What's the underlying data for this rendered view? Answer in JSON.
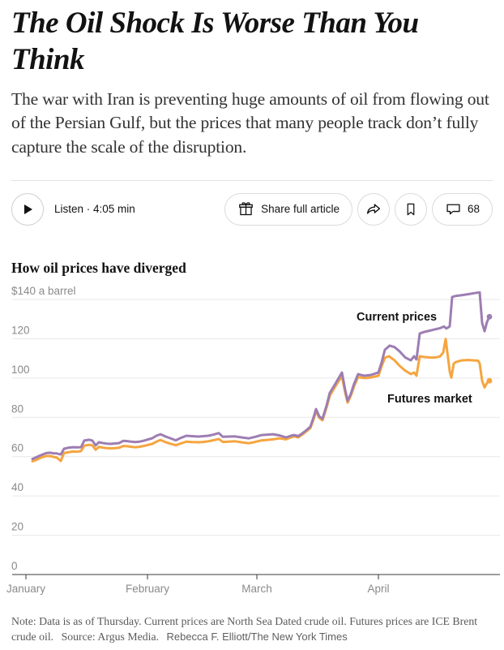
{
  "article": {
    "headline": "The Oil Shock Is Worse Than You Think",
    "subheadline": "The war with Iran is preventing huge amounts of oil from flowing out of the Persian Gulf, but the prices that many people track don’t fully capture the scale of the disruption.",
    "listen_label": "Listen · 4:05 min",
    "share_button_label": "Share full article",
    "comment_count": "68"
  },
  "chart_data": {
    "type": "line",
    "title": "How oil prices have diverged",
    "unit_label": "$140 a barrel",
    "ylabel": "dollars per barrel",
    "ylim": [
      0,
      140
    ],
    "y_ticks": [
      0,
      20,
      40,
      60,
      80,
      100,
      120,
      140
    ],
    "x_ticks": [
      "January",
      "February",
      "March",
      "April"
    ],
    "grid": true,
    "legend_position": "inline-annotations",
    "series": [
      {
        "name": "Current prices",
        "color": "#9d7db2",
        "points": [
          [
            40,
            58.8
          ],
          [
            44,
            59.5
          ],
          [
            48,
            60.3
          ],
          [
            52,
            61.0
          ],
          [
            57,
            61.8
          ],
          [
            62,
            62.0
          ],
          [
            66,
            61.7
          ],
          [
            70,
            61.6
          ],
          [
            75,
            61.1
          ],
          [
            79,
            64.0
          ],
          [
            84,
            64.5
          ],
          [
            90,
            64.8
          ],
          [
            95,
            64.7
          ],
          [
            100,
            64.8
          ],
          [
            104,
            68.2
          ],
          [
            110,
            68.6
          ],
          [
            114,
            68.2
          ],
          [
            118,
            65.7
          ],
          [
            122,
            67.3
          ],
          [
            127,
            66.9
          ],
          [
            132,
            66.6
          ],
          [
            137,
            66.5
          ],
          [
            142,
            66.7
          ],
          [
            147,
            66.9
          ],
          [
            152,
            68.0
          ],
          [
            157,
            67.9
          ],
          [
            162,
            67.6
          ],
          [
            167,
            67.4
          ],
          [
            172,
            67.6
          ],
          [
            178,
            68.2
          ],
          [
            183,
            68.8
          ],
          [
            188,
            69.4
          ],
          [
            193,
            70.6
          ],
          [
            198,
            71.4
          ],
          [
            204,
            70.3
          ],
          [
            210,
            69.4
          ],
          [
            217,
            68.3
          ],
          [
            223,
            69.5
          ],
          [
            230,
            70.6
          ],
          [
            237,
            70.4
          ],
          [
            245,
            70.2
          ],
          [
            251,
            70.4
          ],
          [
            257,
            70.6
          ],
          [
            264,
            71.3
          ],
          [
            270,
            72.0
          ],
          [
            275,
            70.1
          ],
          [
            282,
            70.2
          ],
          [
            290,
            70.3
          ],
          [
            298,
            69.8
          ],
          [
            307,
            69.3
          ],
          [
            315,
            70.1
          ],
          [
            323,
            71.0
          ],
          [
            330,
            71.2
          ],
          [
            337,
            71.4
          ],
          [
            345,
            70.8
          ],
          [
            353,
            69.8
          ],
          [
            359,
            70.6
          ],
          [
            363,
            71.0
          ],
          [
            368,
            70.4
          ],
          [
            373,
            71.8
          ],
          [
            377,
            73.1
          ],
          [
            383,
            75.2
          ],
          [
            387,
            80.0
          ],
          [
            390,
            84.2
          ],
          [
            394,
            80.5
          ],
          [
            398,
            79.3
          ],
          [
            403,
            86.0
          ],
          [
            407,
            92.5
          ],
          [
            412,
            95.8
          ],
          [
            418,
            100.0
          ],
          [
            422,
            102.8
          ],
          [
            426,
            94.0
          ],
          [
            429,
            88.4
          ],
          [
            433,
            92.0
          ],
          [
            437,
            97.1
          ],
          [
            442,
            102.0
          ],
          [
            446,
            101.5
          ],
          [
            450,
            101.2
          ],
          [
            454,
            101.4
          ],
          [
            458,
            101.6
          ],
          [
            463,
            102.3
          ],
          [
            467,
            102.8
          ],
          [
            471,
            108.0
          ],
          [
            475,
            114.4
          ],
          [
            481,
            116.5
          ],
          [
            487,
            115.7
          ],
          [
            493,
            113.6
          ],
          [
            500,
            110.5
          ],
          [
            507,
            109.0
          ],
          [
            511,
            111.1
          ],
          [
            514,
            109.5
          ],
          [
            518,
            122.7
          ],
          [
            523,
            123.4
          ],
          [
            528,
            123.9
          ],
          [
            533,
            124.4
          ],
          [
            538,
            124.9
          ],
          [
            543,
            125.4
          ],
          [
            548,
            126.2
          ],
          [
            551,
            125.2
          ],
          [
            555,
            126.3
          ],
          [
            558,
            141.3
          ],
          [
            563,
            141.8
          ],
          [
            570,
            142.2
          ],
          [
            578,
            142.7
          ],
          [
            585,
            143.2
          ],
          [
            592,
            143.6
          ],
          [
            595,
            128.0
          ],
          [
            598,
            123.8
          ],
          [
            601,
            128.5
          ],
          [
            604,
            131.2
          ]
        ]
      },
      {
        "name": "Futures market",
        "color": "#f5a53f",
        "points": [
          [
            40,
            57.6
          ],
          [
            44,
            58.2
          ],
          [
            48,
            59.0
          ],
          [
            52,
            59.7
          ],
          [
            57,
            60.3
          ],
          [
            62,
            60.3
          ],
          [
            66,
            59.9
          ],
          [
            70,
            59.5
          ],
          [
            75,
            57.8
          ],
          [
            79,
            61.8
          ],
          [
            84,
            62.2
          ],
          [
            90,
            62.6
          ],
          [
            95,
            62.5
          ],
          [
            100,
            62.8
          ],
          [
            104,
            65.6
          ],
          [
            110,
            66.0
          ],
          [
            114,
            65.7
          ],
          [
            118,
            63.5
          ],
          [
            122,
            65.0
          ],
          [
            127,
            64.6
          ],
          [
            132,
            64.3
          ],
          [
            137,
            64.2
          ],
          [
            142,
            64.3
          ],
          [
            147,
            64.5
          ],
          [
            152,
            65.4
          ],
          [
            157,
            65.3
          ],
          [
            162,
            65.0
          ],
          [
            167,
            64.8
          ],
          [
            172,
            65.0
          ],
          [
            178,
            65.5
          ],
          [
            183,
            66.0
          ],
          [
            188,
            66.5
          ],
          [
            193,
            67.6
          ],
          [
            198,
            68.5
          ],
          [
            204,
            67.4
          ],
          [
            210,
            66.6
          ],
          [
            217,
            65.8
          ],
          [
            223,
            66.7
          ],
          [
            230,
            67.6
          ],
          [
            237,
            67.4
          ],
          [
            245,
            67.3
          ],
          [
            251,
            67.5
          ],
          [
            257,
            67.8
          ],
          [
            264,
            68.4
          ],
          [
            270,
            69.0
          ],
          [
            275,
            67.5
          ],
          [
            282,
            67.6
          ],
          [
            290,
            67.8
          ],
          [
            298,
            67.3
          ],
          [
            307,
            66.8
          ],
          [
            315,
            67.5
          ],
          [
            323,
            68.3
          ],
          [
            330,
            68.5
          ],
          [
            337,
            68.8
          ],
          [
            345,
            69.3
          ],
          [
            353,
            68.8
          ],
          [
            359,
            69.8
          ],
          [
            363,
            70.3
          ],
          [
            368,
            69.8
          ],
          [
            373,
            71.2
          ],
          [
            377,
            72.5
          ],
          [
            383,
            74.5
          ],
          [
            387,
            79.0
          ],
          [
            390,
            83.0
          ],
          [
            394,
            79.8
          ],
          [
            398,
            78.5
          ],
          [
            403,
            85.0
          ],
          [
            407,
            91.0
          ],
          [
            412,
            94.5
          ],
          [
            418,
            98.5
          ],
          [
            422,
            100.8
          ],
          [
            426,
            92.5
          ],
          [
            429,
            87.5
          ],
          [
            433,
            91.0
          ],
          [
            437,
            95.8
          ],
          [
            442,
            100.5
          ],
          [
            446,
            100.2
          ],
          [
            450,
            100.0
          ],
          [
            454,
            100.1
          ],
          [
            458,
            100.3
          ],
          [
            463,
            100.8
          ],
          [
            467,
            101.2
          ],
          [
            471,
            106.0
          ],
          [
            475,
            110.3
          ],
          [
            480,
            111.1
          ],
          [
            487,
            109.0
          ],
          [
            493,
            106.3
          ],
          [
            500,
            103.8
          ],
          [
            507,
            102.0
          ],
          [
            511,
            102.8
          ],
          [
            514,
            101.2
          ],
          [
            518,
            111.1
          ],
          [
            523,
            110.7
          ],
          [
            528,
            110.5
          ],
          [
            533,
            110.4
          ],
          [
            538,
            110.5
          ],
          [
            543,
            111.0
          ],
          [
            547,
            113.0
          ],
          [
            550,
            119.9
          ],
          [
            553,
            110.0
          ],
          [
            555,
            103.4
          ],
          [
            557,
            100.2
          ],
          [
            560,
            107.4
          ],
          [
            563,
            108.2
          ],
          [
            570,
            109.0
          ],
          [
            578,
            109.2
          ],
          [
            585,
            109.0
          ],
          [
            590,
            108.8
          ],
          [
            592,
            107.4
          ],
          [
            595,
            98.6
          ],
          [
            598,
            95.2
          ],
          [
            601,
            97.5
          ],
          [
            604,
            98.6
          ]
        ]
      }
    ]
  },
  "note": {
    "text": "Note: Data is as of Thursday. Current prices are North Sea Dated crude oil. Futures prices are ICE Brent crude oil.",
    "source": "Source: Argus Media.",
    "byline": "Rebecca F. Elliott/The New York Times"
  }
}
